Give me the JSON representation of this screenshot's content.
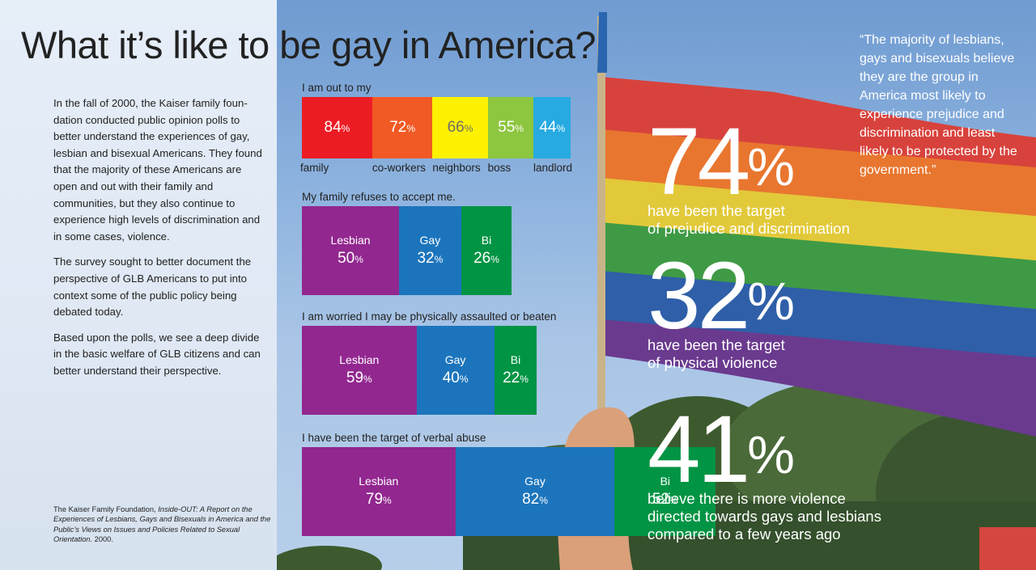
{
  "title": "What it’s like to be gay in America?",
  "intro": [
    "In the fall of 2000, the Kaiser family foun-dation conducted public opinion polls to better understand the experiences of gay, lesbian and bisexual Americans. They found that the majority of these Americans are open and out with their family and communities, but they also continue to experience high levels of discrimination and in some cases, violence.",
    "The survey sought to better document the perspective of GLB Americans to put into context some of the public policy being debated today.",
    "Based upon the polls, we see a deep divide in the basic welfare of GLB citizens and can better understand their perspective."
  ],
  "source": {
    "prefix": "The Kaiser Family Foundation, ",
    "italic": "Inside-OUT: A Report on the Experiences of Lesbians, Gays and Bisexuals in America and the Public’s Views on Issues and Policies Related to Sexual Orientation.",
    "suffix": " 2000."
  },
  "percent_sign": "%",
  "chart_data": [
    {
      "type": "bar",
      "title": "I am out to my",
      "categories": [
        "family",
        "co-workers",
        "neighbors",
        "boss",
        "landlord"
      ],
      "values": [
        84,
        72,
        66,
        55,
        44
      ],
      "value_labels": [
        "84",
        "72",
        "66",
        "55",
        "44"
      ],
      "colors": [
        "#ec1c24",
        "#f15a24",
        "#fff200",
        "#8dc63f",
        "#27aae1"
      ],
      "value_text_colors": [
        "#ffffff",
        "#ffffff",
        "#6d6d6d",
        "#ffffff",
        "#ffffff"
      ]
    },
    {
      "type": "bar",
      "title": "My family refuses to accept me.",
      "categories": [
        "Lesbian",
        "Gay",
        "Bi"
      ],
      "values": [
        50,
        32,
        26
      ],
      "value_labels": [
        "50",
        "32",
        "26"
      ],
      "colors": [
        "#92278f",
        "#1c75bc",
        "#009444"
      ]
    },
    {
      "type": "bar",
      "title": "I am worried I may be physically assaulted or beaten",
      "categories": [
        "Lesbian",
        "Gay",
        "Bi"
      ],
      "values": [
        59,
        40,
        22
      ],
      "value_labels": [
        "59",
        "40",
        "22"
      ],
      "colors": [
        "#92278f",
        "#1c75bc",
        "#009444"
      ]
    },
    {
      "type": "bar",
      "title": "I have been the target of verbal abuse",
      "categories": [
        "Lesbian",
        "Gay",
        "Bi"
      ],
      "values": [
        79,
        82,
        52
      ],
      "value_labels": [
        "79",
        "82",
        "52"
      ],
      "colors": [
        "#92278f",
        "#1c75bc",
        "#009444"
      ]
    }
  ],
  "stats": [
    {
      "value": "74",
      "pct": "%",
      "lines": [
        "have been the target",
        "of prejudice and discrimination"
      ]
    },
    {
      "value": "32",
      "pct": "%",
      "lines": [
        "have been the target",
        "of physical violence"
      ]
    },
    {
      "value": "41",
      "pct": "%",
      "lines": [
        "believe there is more violence",
        "directed towards gays and lesbians",
        "compared to a few years ago"
      ]
    }
  ],
  "quote": "“The majority of lesbians, gays and bisexuals believe they are the group in America most likely to experience prejudice and discrimination and least likely to be protected by the government.”"
}
